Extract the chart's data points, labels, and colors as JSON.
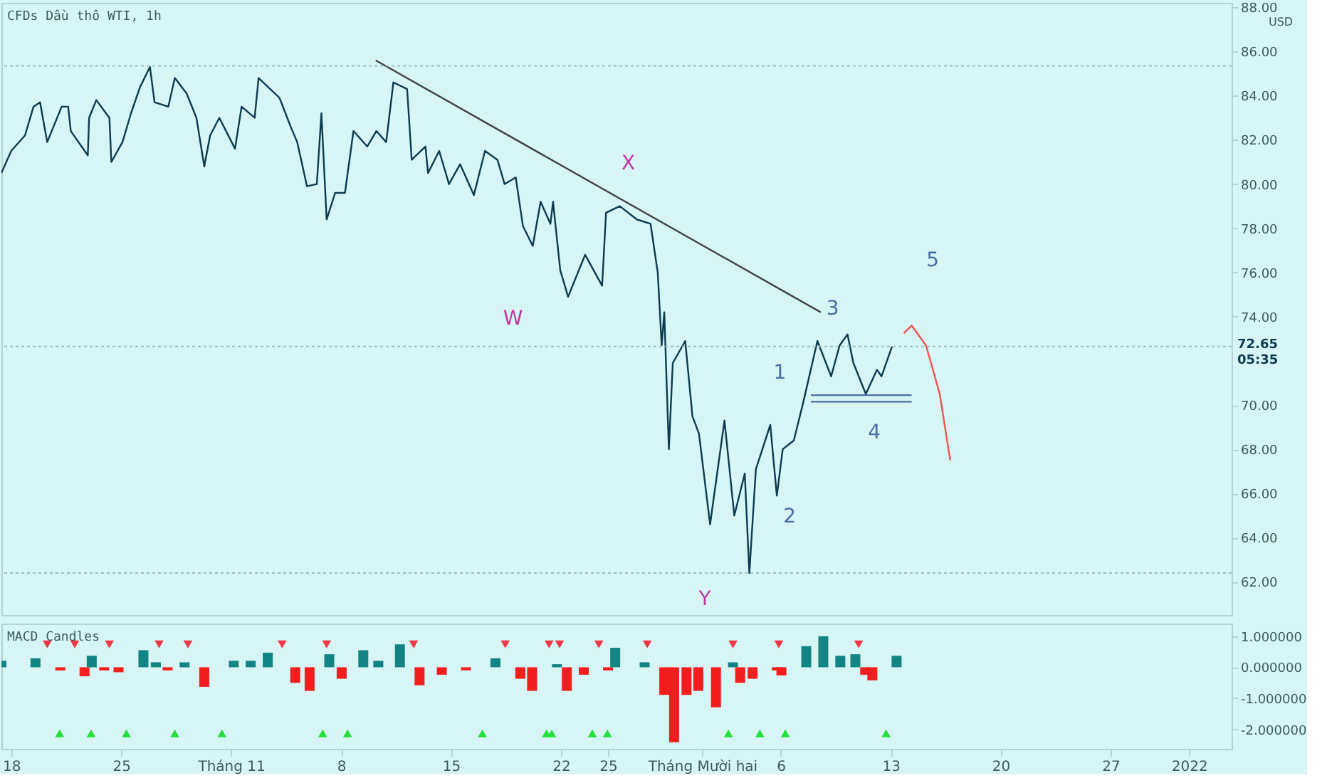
{
  "chart_data": [
    {
      "type": "line",
      "title": "CFDs Dầu thô WTI, 1h",
      "ylabel": "USD",
      "xlim": [
        "2021-10-17T09:00",
        "2022-01-03T17:00"
      ],
      "ylim": [
        60.5,
        88.2
      ],
      "grid": false,
      "tick_labels": "y",
      "yticks": [
        {
          "value": 62,
          "label": "62.00"
        },
        {
          "value": 64,
          "label": "64.00"
        },
        {
          "value": 66,
          "label": "66.00"
        },
        {
          "value": 68,
          "label": "68.00"
        },
        {
          "value": 70,
          "label": "70.00"
        },
        {
          "value": 74,
          "label": "74.00"
        },
        {
          "value": 76,
          "label": "76.00"
        },
        {
          "value": 78,
          "label": "78.00"
        },
        {
          "value": 80,
          "label": "80.00"
        },
        {
          "value": 82,
          "label": "82.00"
        },
        {
          "value": 84,
          "label": "84.00"
        },
        {
          "value": 86,
          "label": "86.00"
        },
        {
          "value": 88,
          "label": "88.00"
        }
      ],
      "series": [
        {
          "color": "#0d3b4f",
          "x": [
            "2021-10-17T09:00",
            "2021-10-18T00:00",
            "2021-10-18T21:00",
            "2021-10-19T10:00",
            "2021-10-19T20:00",
            "2021-10-20T07:00",
            "2021-10-21T05:00",
            "2021-10-21T15:00",
            "2021-10-21T19:00",
            "2021-10-22T21:00",
            "2021-10-22T23:00",
            "2021-10-23T10:00",
            "2021-10-24T06:00",
            "2021-10-24T09:00",
            "2021-10-25T02:00",
            "2021-10-25T15:00",
            "2021-10-26T05:00",
            "2021-10-26T20:00",
            "2021-10-27T03:00",
            "2021-10-28T00:00",
            "2021-10-28T10:00",
            "2021-10-29T04:00",
            "2021-10-29T19:00",
            "2021-10-30T07:00",
            "2021-10-30T16:00",
            "2021-10-31T06:00",
            "2021-11-01T06:00",
            "2021-11-01T16:00",
            "2021-11-02T12:00",
            "2021-11-02T18:00",
            "2021-11-04T02:00",
            "2021-11-04T19:00",
            "2021-11-05T05:00",
            "2021-11-05T20:00",
            "2021-11-06T11:00",
            "2021-11-06T18:00",
            "2021-11-07T02:00",
            "2021-11-07T15:00",
            "2021-11-08T06:00",
            "2021-11-08T19:00",
            "2021-11-09T16:00",
            "2021-11-10T06:00",
            "2021-11-10T21:00",
            "2021-11-11T08:00",
            "2021-11-12T05:00",
            "2021-11-12T12:00",
            "2021-11-13T09:00",
            "2021-11-13T13:00",
            "2021-11-14T06:00",
            "2021-11-14T21:00",
            "2021-11-15T14:00",
            "2021-11-16T11:00",
            "2021-11-17T04:00",
            "2021-11-17T23:00",
            "2021-11-18T10:00",
            "2021-11-19T03:00",
            "2021-11-19T14:00",
            "2021-11-20T05:00",
            "2021-11-20T17:00",
            "2021-11-21T08:00",
            "2021-11-21T12:00",
            "2021-11-21T23:00",
            "2021-11-22T11:00",
            "2021-11-23T13:00",
            "2021-11-24T15:00",
            "2021-11-24T21:00",
            "2021-11-25T18:00",
            "2021-11-26T20:00",
            "2021-11-27T17:00",
            "2021-11-28T04:00",
            "2021-11-28T10:00",
            "2021-11-28T14:00",
            "2021-11-28T21:00",
            "2021-11-29T03:00",
            "2021-11-29T22:00",
            "2021-11-30T09:00",
            "2021-11-30T19:00",
            "2021-12-01T12:00",
            "2021-12-02T10:00",
            "2021-12-03T01:00",
            "2021-12-03T17:00",
            "2021-12-04T00:00",
            "2021-12-04T10:00",
            "2021-12-05T08:00",
            "2021-12-05T18:00",
            "2021-12-06T03:00",
            "2021-12-06T20:00",
            "2021-12-07T11:00",
            "2021-12-08T08:00",
            "2021-12-09T05:00",
            "2021-12-09T18:00",
            "2021-12-10T06:00",
            "2021-12-10T15:00",
            "2021-12-11T10:00",
            "2021-12-12T03:00",
            "2021-12-12T10:00",
            "2021-12-13T02:00"
          ],
          "values": [
            80.5,
            81.5,
            82.2,
            83.5,
            83.7,
            81.9,
            83.5,
            83.5,
            82.4,
            81.3,
            83.0,
            83.8,
            83.0,
            81.0,
            81.9,
            83.2,
            84.4,
            85.3,
            83.7,
            83.5,
            84.8,
            84.1,
            83.0,
            80.8,
            82.2,
            83.0,
            81.6,
            83.5,
            83.0,
            84.8,
            83.9,
            82.6,
            81.9,
            79.9,
            80.0,
            83.2,
            78.4,
            79.6,
            79.6,
            82.4,
            81.7,
            82.4,
            81.9,
            84.6,
            84.3,
            81.1,
            81.7,
            80.5,
            81.5,
            80.0,
            80.9,
            79.5,
            81.5,
            81.1,
            80.0,
            80.3,
            78.1,
            77.2,
            79.2,
            78.2,
            79.2,
            76.1,
            74.9,
            76.8,
            75.4,
            78.7,
            79.0,
            78.4,
            78.2,
            76.0,
            72.7,
            74.2,
            68.0,
            71.9,
            72.9,
            69.5,
            68.7,
            64.6,
            69.3,
            65.0,
            66.9,
            62.4,
            67.1,
            69.1,
            65.9,
            68.0,
            68.4,
            70.2,
            72.9,
            71.3,
            72.7,
            73.2,
            71.9,
            70.5,
            71.6,
            71.3,
            72.65
          ]
        },
        {
          "color": "#444444",
          "x": [
            "2021-11-10T05:00",
            "2021-12-08T13:00"
          ],
          "values": [
            85.6,
            74.2
          ]
        },
        {
          "color": "#4a6fa5",
          "x": [
            "2021-12-07T22:00",
            "2021-12-14T08:00"
          ],
          "values": [
            70.15,
            70.15
          ]
        },
        {
          "color": "#4a6fa5",
          "x": [
            "2021-12-07T22:00",
            "2021-12-14T08:00"
          ],
          "values": [
            70.45,
            70.45
          ]
        },
        {
          "color": "#ef5350",
          "x": [
            "2021-12-13T20:00",
            "2021-12-14T08:00",
            "2021-12-15T06:00",
            "2021-12-16T03:00",
            "2021-12-16T19:00"
          ],
          "values": [
            73.25,
            73.6,
            72.7,
            70.5,
            67.5
          ]
        }
      ],
      "ref_lines": [
        {
          "axis": "y",
          "value": 72.65,
          "label": "72.65 05:35",
          "color": "#9bbfc4",
          "line_style": "dotted"
        },
        {
          "axis": "y",
          "value": 85.35,
          "color": "#9bbfc4",
          "line_style": "dotted"
        },
        {
          "axis": "y",
          "value": 62.4,
          "color": "#9bbfc4",
          "line_style": "dotted"
        }
      ],
      "annotations": [
        "W",
        "X",
        "Y",
        "1",
        "2",
        "3",
        "4",
        "5"
      ]
    },
    {
      "type": "bar",
      "title": "MACD Candles",
      "xlim": [
        "2021-10-17T09:00",
        "2022-01-03T17:00"
      ],
      "ylim": [
        -2.63,
        1.41
      ],
      "grid": false,
      "xticks": [
        {
          "value": "2021-10-18T00:00",
          "label": "18"
        },
        {
          "value": "2021-10-25T00:00",
          "label": "25"
        },
        {
          "value": "2021-11-01T00:00",
          "label": "Tháng 11"
        },
        {
          "value": "2021-11-08T00:00",
          "label": "8"
        },
        {
          "value": "2021-11-15T00:00",
          "label": "15"
        },
        {
          "value": "2021-11-22T00:00",
          "label": "22"
        },
        {
          "value": "2021-11-25T00:00",
          "label": "25"
        },
        {
          "value": "2021-12-01T00:00",
          "label": "Tháng Mười hai"
        },
        {
          "value": "2021-12-06T00:00",
          "label": "6"
        },
        {
          "value": "2021-12-13T00:00",
          "label": "13"
        },
        {
          "value": "2021-12-20T00:00",
          "label": "20"
        },
        {
          "value": "2021-12-27T00:00",
          "label": "27"
        },
        {
          "value": "2022-01-01T00:00",
          "label": "2022"
        }
      ],
      "yticks": [
        {
          "value": 1,
          "label": "1.000000"
        },
        {
          "value": 0,
          "label": "0.000000"
        },
        {
          "value": -1,
          "label": "-1.000000"
        },
        {
          "value": -2,
          "label": "-2.000000"
        }
      ],
      "series": [
        {
          "x": [
            "2021-10-17T09:00",
            "2021-10-19T13:00",
            "2021-10-21T03:00",
            "2021-10-22T16:00",
            "2021-10-23T03:00",
            "2021-10-23T22:00",
            "2021-10-24T20:00",
            "2021-10-26T10:00",
            "2021-10-27T05:00",
            "2021-10-27T23:00",
            "2021-10-29T01:00",
            "2021-10-30T07:00",
            "2021-11-01T04:00",
            "2021-11-02T06:00",
            "2021-11-03T08:00",
            "2021-11-05T02:00",
            "2021-11-06T00:00",
            "2021-11-07T06:00",
            "2021-11-08T01:00",
            "2021-11-09T10:00",
            "2021-11-10T09:00",
            "2021-11-11T18:00",
            "2021-11-13T00:00",
            "2021-11-14T10:00",
            "2021-11-15T23:00",
            "2021-11-17T20:00",
            "2021-11-19T10:00",
            "2021-11-20T04:00",
            "2021-11-21T18:00",
            "2021-11-22T09:00",
            "2021-11-23T11:00",
            "2021-11-25T00:00",
            "2021-11-25T11:00",
            "2021-11-27T08:00",
            "2021-11-28T14:00",
            "2021-11-29T05:00",
            "2021-11-30T00:00",
            "2021-11-30T18:00",
            "2021-12-01T21:00",
            "2021-12-02T23:00",
            "2021-12-03T10:00",
            "2021-12-04T05:00",
            "2021-12-05T18:00",
            "2021-12-06T01:00",
            "2021-12-07T15:00",
            "2021-12-08T17:00",
            "2021-12-09T19:00",
            "2021-12-10T18:00",
            "2021-12-11T09:00",
            "2021-12-11T20:00",
            "2021-12-13T09:00"
          ],
          "values": [
            0.21,
            0.29,
            -0.1,
            -0.29,
            0.37,
            -0.1,
            -0.16,
            0.55,
            0.16,
            -0.1,
            0.16,
            -0.63,
            0.21,
            0.21,
            0.47,
            -0.5,
            -0.76,
            0.42,
            -0.37,
            0.55,
            0.21,
            0.74,
            -0.58,
            -0.24,
            -0.1,
            0.29,
            -0.37,
            -0.76,
            0.1,
            -0.76,
            -0.24,
            -0.1,
            0.63,
            0.16,
            -0.89,
            -2.42,
            -0.89,
            -0.76,
            -1.29,
            0.16,
            -0.5,
            -0.37,
            -0.1,
            -0.26,
            0.68,
            1.0,
            0.37,
            0.42,
            -0.24,
            -0.42,
            0.37
          ],
          "colors": [
            "#138484",
            "#138484",
            "#f21d1d",
            "#f21d1d",
            "#138484",
            "#f21d1d",
            "#f21d1d",
            "#138484",
            "#138484",
            "#f21d1d",
            "#138484",
            "#f21d1d",
            "#138484",
            "#138484",
            "#138484",
            "#f21d1d",
            "#f21d1d",
            "#138484",
            "#f21d1d",
            "#138484",
            "#138484",
            "#138484",
            "#f21d1d",
            "#f21d1d",
            "#f21d1d",
            "#138484",
            "#f21d1d",
            "#f21d1d",
            "#138484",
            "#f21d1d",
            "#f21d1d",
            "#f21d1d",
            "#138484",
            "#138484",
            "#f21d1d",
            "#f21d1d",
            "#f21d1d",
            "#f21d1d",
            "#f21d1d",
            "#138484",
            "#f21d1d",
            "#f21d1d",
            "#f21d1d",
            "#f21d1d",
            "#138484",
            "#138484",
            "#138484",
            "#138484",
            "#f21d1d",
            "#f21d1d",
            "#138484"
          ]
        },
        {
          "type": "scatter",
          "marker": "triangle-down",
          "color": "#f23645",
          "x": [
            "2021-10-20T07:00",
            "2021-10-22T01:00",
            "2021-10-24T06:00",
            "2021-10-27T10:00",
            "2021-10-29T06:00",
            "2021-11-04T06:00",
            "2021-11-07T02:00",
            "2021-11-12T15:00",
            "2021-11-18T11:00",
            "2021-11-21T06:00",
            "2021-11-21T22:00",
            "2021-11-24T10:00",
            "2021-11-27T12:00",
            "2021-12-02T23:00",
            "2021-12-05T21:00",
            "2021-12-10T23:00"
          ],
          "values": [
            0.74,
            0.74,
            0.74,
            0.74,
            0.74,
            0.74,
            0.74,
            0.74,
            0.74,
            0.74,
            0.74,
            0.74,
            0.74,
            0.74,
            0.74,
            0.74
          ]
        },
        {
          "type": "scatter",
          "marker": "triangle",
          "color": "#22e03a",
          "x": [
            "2021-10-21T02:00",
            "2021-10-23T02:00",
            "2021-10-25T08:00",
            "2021-10-28T10:00",
            "2021-10-31T10:00",
            "2021-11-06T20:00",
            "2021-11-08T10:00",
            "2021-11-17T00:00",
            "2021-11-21T02:00",
            "2021-11-21T10:00",
            "2021-11-24T00:00",
            "2021-11-24T23:00",
            "2021-12-02T16:00",
            "2021-12-04T16:00",
            "2021-12-06T07:00",
            "2021-12-12T17:00"
          ],
          "values": [
            -2.13,
            -2.13,
            -2.13,
            -2.13,
            -2.13,
            -2.13,
            -2.13,
            -2.13,
            -2.13,
            -2.13,
            -2.13,
            -2.13,
            -2.13,
            -2.13,
            -2.13,
            -2.13
          ]
        }
      ]
    }
  ]
}
